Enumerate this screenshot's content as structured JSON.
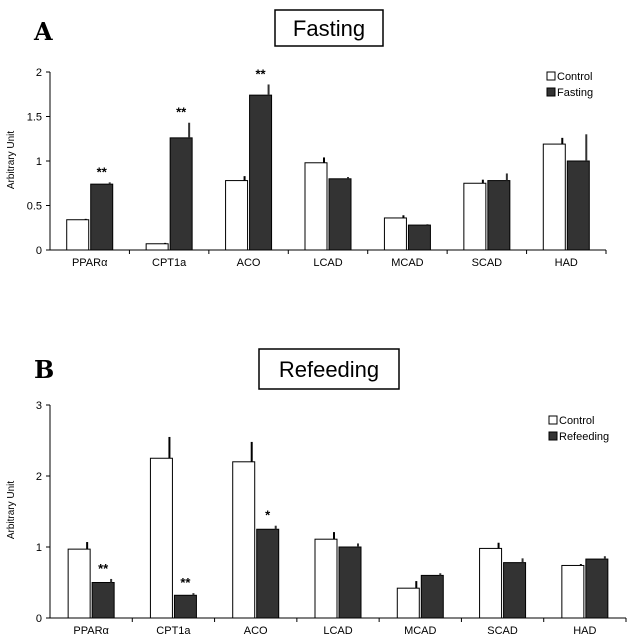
{
  "chart_data": [
    {
      "type": "bar",
      "panel": "A",
      "title": "Fasting",
      "ylabel": "Arbitrary Unit",
      "xlabel": "",
      "ylim": [
        0,
        2
      ],
      "yticks": [
        "0",
        "0.5",
        "1",
        "1.5",
        "2"
      ],
      "ytick_values": [
        0,
        0.5,
        1,
        1.5,
        2
      ],
      "categories": [
        "PPARα",
        "CPT1a",
        "ACO",
        "LCAD",
        "MCAD",
        "SCAD",
        "HAD"
      ],
      "legend_position": "top-right",
      "series": [
        {
          "name": "Control",
          "color": "#ffffff",
          "values": [
            0.34,
            0.07,
            0.78,
            0.98,
            0.36,
            0.75,
            1.19
          ],
          "errors": [
            0.01,
            0.01,
            0.05,
            0.06,
            0.03,
            0.04,
            0.07
          ],
          "significance": [
            "",
            "",
            "",
            "",
            "",
            "",
            ""
          ]
        },
        {
          "name": "Fasting",
          "color": "#333333",
          "values": [
            0.74,
            1.26,
            1.74,
            0.8,
            0.28,
            0.78,
            1.0
          ],
          "errors": [
            0.02,
            0.17,
            0.12,
            0.02,
            0.01,
            0.08,
            0.3
          ],
          "significance": [
            "**",
            "**",
            "**",
            "",
            "",
            "",
            ""
          ]
        }
      ]
    },
    {
      "type": "bar",
      "panel": "B",
      "title": "Refeeding",
      "ylabel": "Arbitrary Unit",
      "xlabel": "",
      "ylim": [
        0,
        3
      ],
      "yticks": [
        "0",
        "1",
        "2",
        "3"
      ],
      "ytick_values": [
        0,
        1,
        2,
        3
      ],
      "categories": [
        "PPARα",
        "CPT1a",
        "ACO",
        "LCAD",
        "MCAD",
        "SCAD",
        "HAD"
      ],
      "legend_position": "top-right",
      "series": [
        {
          "name": "Control",
          "color": "#ffffff",
          "values": [
            0.97,
            2.25,
            2.2,
            1.11,
            0.42,
            0.98,
            0.74
          ],
          "errors": [
            0.1,
            0.3,
            0.28,
            0.1,
            0.1,
            0.08,
            0.02
          ],
          "significance": [
            "",
            "",
            "",
            "",
            "",
            "",
            ""
          ]
        },
        {
          "name": "Refeeding",
          "color": "#333333",
          "values": [
            0.5,
            0.32,
            1.25,
            1.0,
            0.6,
            0.78,
            0.83
          ],
          "errors": [
            0.05,
            0.03,
            0.05,
            0.05,
            0.03,
            0.06,
            0.04
          ],
          "significance": [
            "**",
            "**",
            "*",
            "",
            "",
            "",
            ""
          ]
        }
      ]
    }
  ]
}
